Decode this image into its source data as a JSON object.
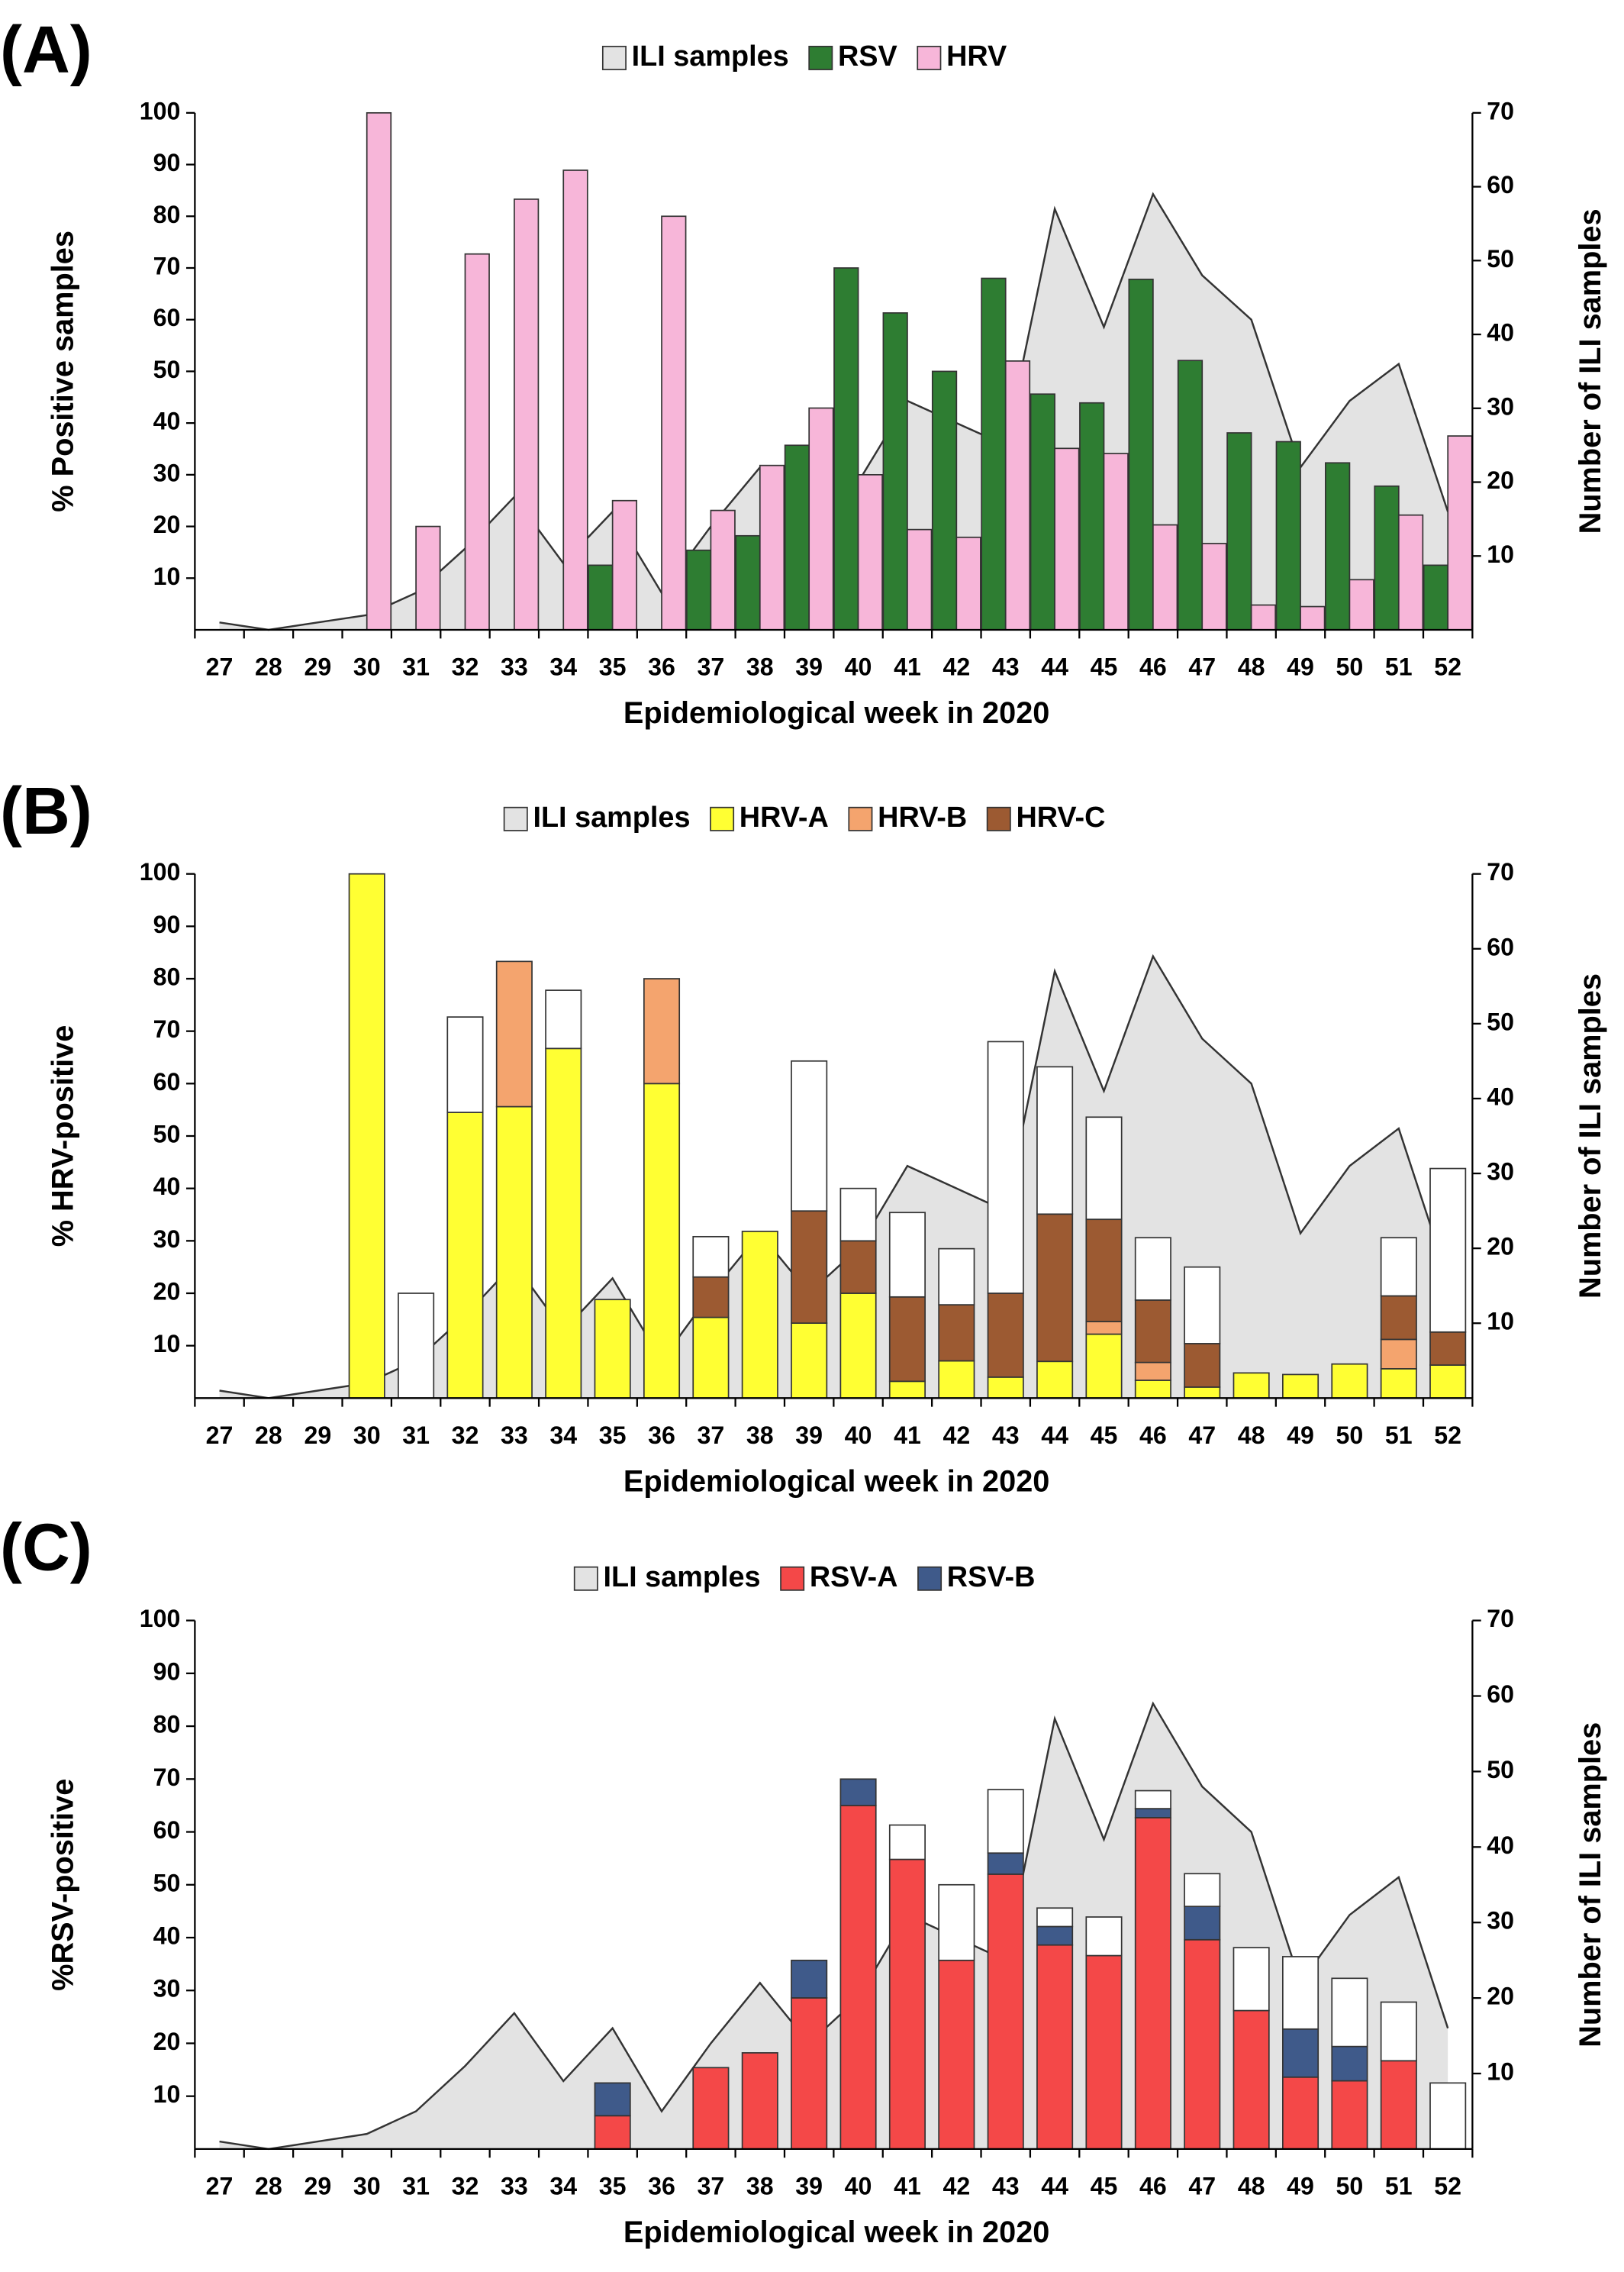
{
  "chart_data": [
    {
      "type": "bar",
      "label": "(A)",
      "stacked": false,
      "ylabel": "% Positive samples",
      "y2label": "Number of ILI samples",
      "xlabel": "Epidemiological week in 2020",
      "categories": [
        "27",
        "28",
        "29",
        "30",
        "31",
        "32",
        "33",
        "34",
        "35",
        "36",
        "37",
        "38",
        "39",
        "40",
        "41",
        "42",
        "43",
        "44",
        "45",
        "46",
        "47",
        "48",
        "49",
        "50",
        "51",
        "52"
      ],
      "ylim": [
        0,
        100
      ],
      "yticks": [
        10,
        20,
        30,
        40,
        50,
        60,
        70,
        80,
        90,
        100
      ],
      "y2lim": [
        0,
        70
      ],
      "y2ticks": [
        10,
        20,
        30,
        40,
        50,
        60,
        70
      ],
      "series": [
        {
          "name": "ILI samples",
          "type": "area",
          "axis": "y2",
          "color": "#e3e3e3",
          "values": [
            1,
            0,
            1,
            2,
            5,
            11,
            18,
            9,
            16,
            5,
            14,
            22,
            14,
            20,
            31,
            28,
            25,
            57,
            41,
            59,
            48,
            42,
            22,
            31,
            36,
            16
          ]
        },
        {
          "name": "RSV",
          "color": "#2e7d32",
          "values": [
            0,
            0,
            0,
            0,
            0,
            0,
            0,
            0,
            12.5,
            0,
            15.4,
            18.2,
            35.7,
            70,
            61.3,
            50,
            68,
            45.6,
            43.9,
            67.8,
            52.1,
            38.1,
            36.4,
            32.3,
            27.8,
            12.5
          ]
        },
        {
          "name": "HRV",
          "color": "#f7b6d9",
          "values": [
            0,
            0,
            0,
            100,
            20,
            72.7,
            83.3,
            88.9,
            25,
            80,
            23.1,
            31.8,
            42.9,
            30,
            19.4,
            17.9,
            52,
            35.1,
            34.1,
            20.3,
            16.7,
            4.8,
            4.5,
            9.7,
            22.2,
            37.5
          ]
        }
      ]
    },
    {
      "type": "bar",
      "label": "(B)",
      "stacked": true,
      "ylabel": "% HRV-positive",
      "y2label": "Number of ILI samples",
      "xlabel": "Epidemiological week in 2020",
      "categories": [
        "27",
        "28",
        "29",
        "30",
        "31",
        "32",
        "33",
        "34",
        "35",
        "36",
        "37",
        "38",
        "39",
        "40",
        "41",
        "42",
        "43",
        "44",
        "45",
        "46",
        "47",
        "48",
        "49",
        "50",
        "51",
        "52"
      ],
      "ylim": [
        0,
        100
      ],
      "yticks": [
        10,
        20,
        30,
        40,
        50,
        60,
        70,
        80,
        90,
        100
      ],
      "y2lim": [
        0,
        70
      ],
      "y2ticks": [
        10,
        20,
        30,
        40,
        50,
        60,
        70
      ],
      "series": [
        {
          "name": "ILI samples",
          "type": "area",
          "axis": "y2",
          "color": "#e3e3e3",
          "values": [
            1,
            0,
            1,
            2,
            5,
            11,
            18,
            9,
            16,
            5,
            14,
            22,
            14,
            20,
            31,
            28,
            25,
            57,
            41,
            59,
            48,
            42,
            22,
            31,
            36,
            16
          ]
        },
        {
          "name": "HRV-A",
          "color": "#ffff33",
          "values": [
            0,
            0,
            0,
            100,
            0,
            54.5,
            55.6,
            66.7,
            18.8,
            60,
            15.4,
            31.8,
            14.3,
            20,
            3.2,
            7.1,
            4,
            7,
            12.2,
            3.4,
            2.1,
            4.8,
            4.5,
            6.5,
            5.6,
            6.3
          ]
        },
        {
          "name": "HRV-B",
          "color": "#f4a46e",
          "values": [
            0,
            0,
            0,
            0,
            0,
            0,
            27.7,
            0,
            0,
            20,
            0,
            0,
            0,
            0,
            0,
            0,
            0,
            0,
            2.4,
            3.4,
            0,
            0,
            0,
            0,
            5.6,
            0
          ]
        },
        {
          "name": "HRV-C",
          "color": "#9c5a32",
          "values": [
            0,
            0,
            0,
            0,
            0,
            0,
            0,
            0,
            0,
            0,
            7.7,
            0,
            21.4,
            10,
            16.1,
            10.7,
            16,
            28.1,
            19.5,
            11.9,
            8.3,
            0,
            0,
            0,
            8.3,
            6.3
          ]
        },
        {
          "color": "#ffffff",
          "values": [
            0,
            0,
            0,
            0,
            20,
            18.2,
            0,
            11.1,
            0,
            0,
            7.7,
            0,
            28.6,
            10,
            16.1,
            10.7,
            48,
            28.1,
            19.5,
            11.9,
            14.6,
            0,
            0,
            0,
            11.1,
            31.2
          ]
        }
      ]
    },
    {
      "type": "bar",
      "label": "(C)",
      "stacked": true,
      "ylabel": "%RSV-positive",
      "y2label": "Number of ILI samples",
      "xlabel": "Epidemiological week in 2020",
      "categories": [
        "27",
        "28",
        "29",
        "30",
        "31",
        "32",
        "33",
        "34",
        "35",
        "36",
        "37",
        "38",
        "39",
        "40",
        "41",
        "42",
        "43",
        "44",
        "45",
        "46",
        "47",
        "48",
        "49",
        "50",
        "51",
        "52"
      ],
      "ylim": [
        0,
        100
      ],
      "yticks": [
        10,
        20,
        30,
        40,
        50,
        60,
        70,
        80,
        90,
        100
      ],
      "y2lim": [
        0,
        70
      ],
      "y2ticks": [
        10,
        20,
        30,
        40,
        50,
        60,
        70
      ],
      "series": [
        {
          "name": "ILI samples",
          "type": "area",
          "axis": "y2",
          "color": "#e3e3e3",
          "values": [
            1,
            0,
            1,
            2,
            5,
            11,
            18,
            9,
            16,
            5,
            14,
            22,
            14,
            20,
            31,
            28,
            25,
            57,
            41,
            59,
            48,
            42,
            22,
            31,
            36,
            16
          ]
        },
        {
          "name": "RSV-A",
          "color": "#f44848",
          "values": [
            0,
            0,
            0,
            0,
            0,
            0,
            0,
            0,
            6.3,
            0,
            15.4,
            18.2,
            28.6,
            65,
            54.8,
            35.7,
            52,
            38.6,
            36.6,
            62.7,
            39.6,
            26.2,
            13.6,
            12.9,
            16.7,
            0
          ]
        },
        {
          "name": "RSV-B",
          "color": "#3f5a8a",
          "values": [
            0,
            0,
            0,
            0,
            0,
            0,
            0,
            0,
            6.2,
            0,
            0,
            0,
            7.1,
            5,
            0,
            0,
            4,
            3.5,
            0,
            1.7,
            6.3,
            0,
            9.1,
            6.5,
            0,
            0
          ]
        },
        {
          "color": "#ffffff",
          "values": [
            0,
            0,
            0,
            0,
            0,
            0,
            0,
            0,
            0,
            0,
            0,
            0,
            0,
            0,
            6.5,
            14.3,
            12,
            3.5,
            7.3,
            3.4,
            6.2,
            11.9,
            13.7,
            12.9,
            11.1,
            12.5
          ]
        }
      ]
    }
  ]
}
